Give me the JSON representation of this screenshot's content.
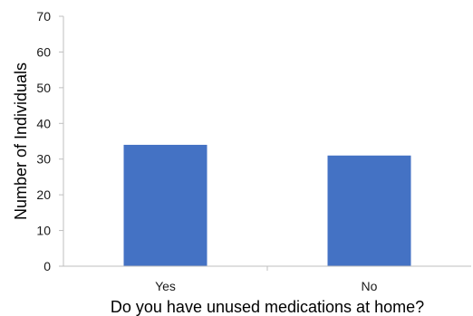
{
  "chart_data": {
    "type": "bar",
    "categories": [
      "Yes",
      "No"
    ],
    "values": [
      34,
      31
    ],
    "title": "",
    "xlabel": "Do you have unused medications at home?",
    "ylabel": "Number of Individuals",
    "ylim": [
      0,
      70
    ],
    "yticks": [
      "0",
      "10",
      "20",
      "30",
      "40",
      "50",
      "60",
      "70"
    ],
    "grid": false,
    "legend": "none",
    "bar_color": "#4472c4",
    "axis_color": "#bfbfbf"
  }
}
